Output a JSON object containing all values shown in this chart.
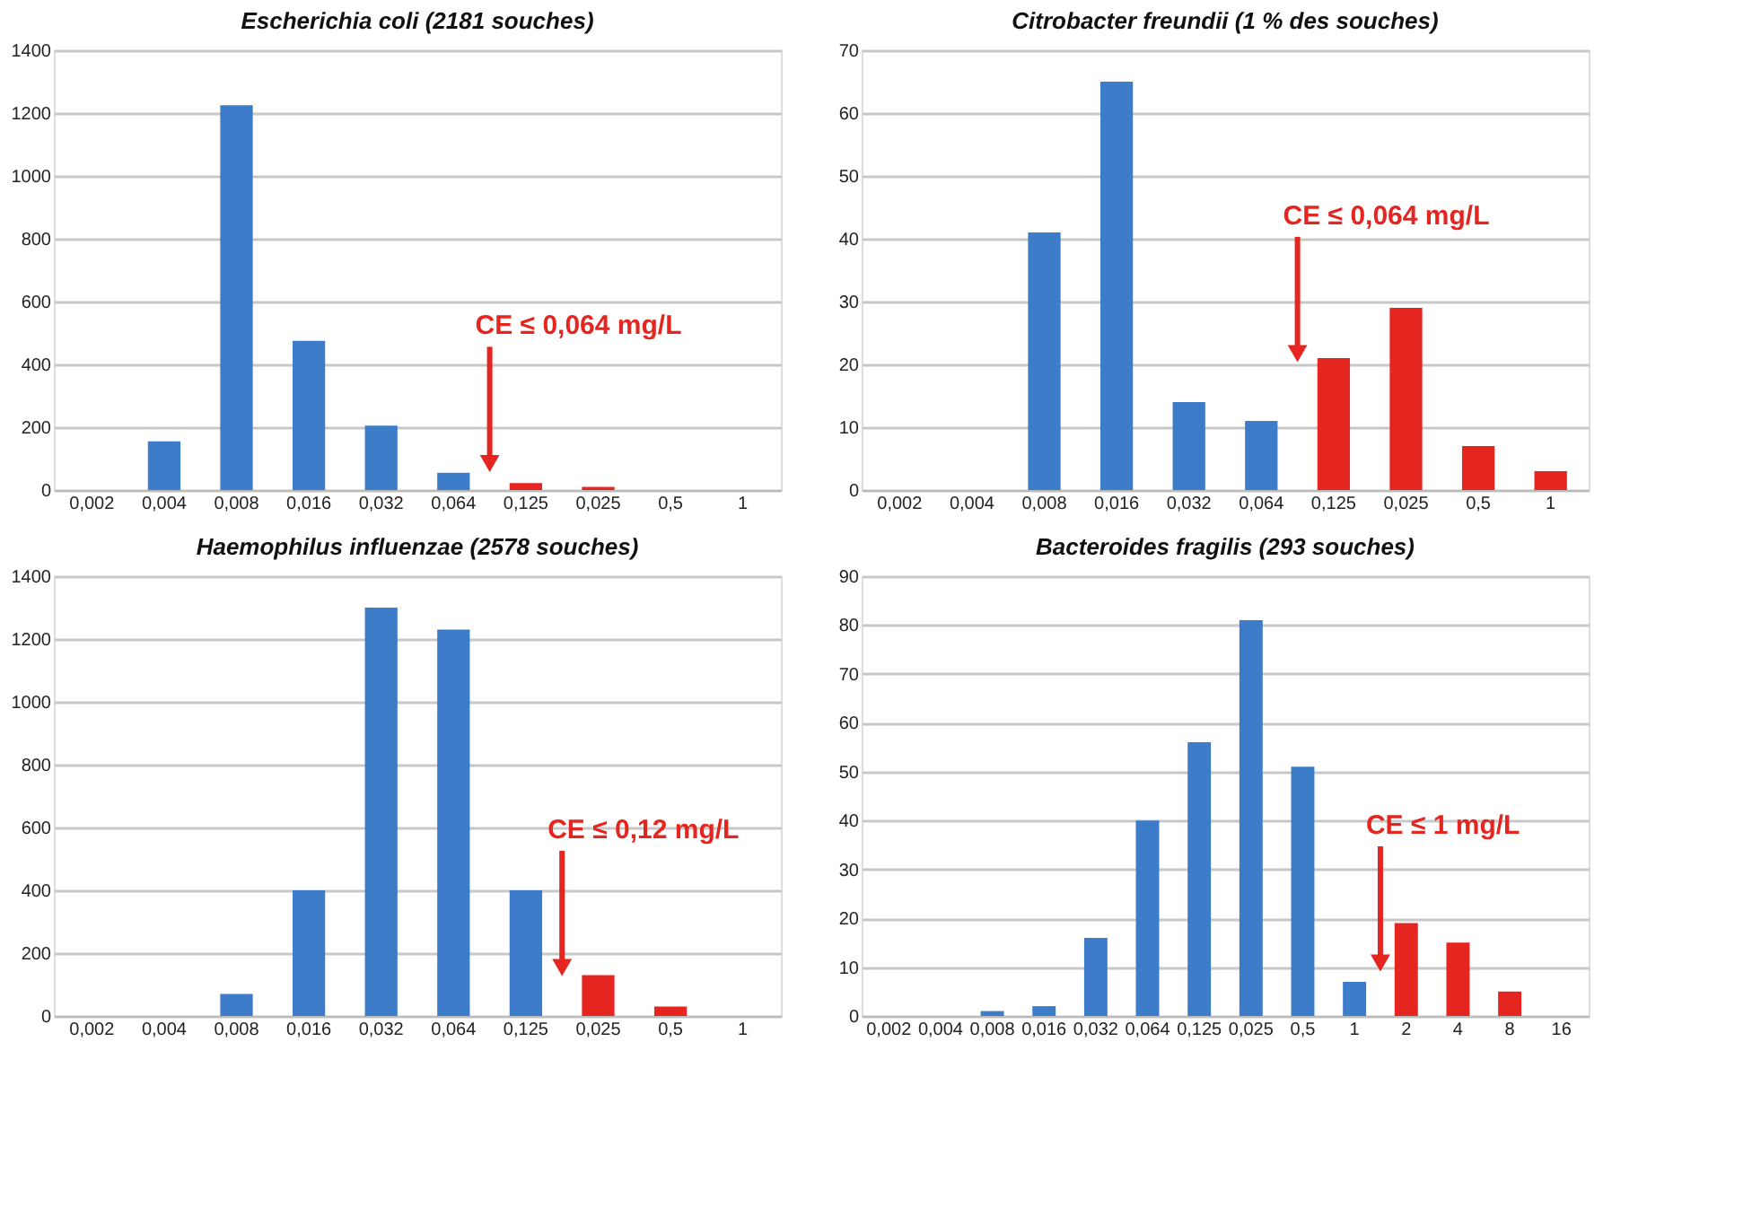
{
  "chart_data": [
    {
      "type": "bar",
      "title": "Escherichia coli (2181 souches)",
      "categories": [
        "0,002",
        "0,004",
        "0,008",
        "0,016",
        "0,032",
        "0,064",
        "0,125",
        "0,025",
        "0,5",
        "1"
      ],
      "values": [
        0,
        155,
        1225,
        475,
        205,
        55,
        22,
        10,
        0,
        0
      ],
      "colors": [
        "#3d7cc9",
        "#3d7cc9",
        "#3d7cc9",
        "#3d7cc9",
        "#3d7cc9",
        "#3d7cc9",
        "#e52520",
        "#e52520",
        "#e52520",
        "#e52520"
      ],
      "ylim": [
        0,
        1400
      ],
      "yticks": [
        0,
        200,
        400,
        600,
        800,
        1000,
        1200,
        1400
      ],
      "grid": "y",
      "annotations": [
        "CE ≤ 0,064 mg/L"
      ]
    },
    {
      "type": "bar",
      "title": "Citrobacter freundii (1 % des souches)",
      "categories": [
        "0,002",
        "0,004",
        "0,008",
        "0,016",
        "0,032",
        "0,064",
        "0,125",
        "0,025",
        "0,5",
        "1"
      ],
      "values": [
        0,
        0,
        41,
        65,
        14,
        11,
        21,
        29,
        7,
        3
      ],
      "colors": [
        "#3d7cc9",
        "#3d7cc9",
        "#3d7cc9",
        "#3d7cc9",
        "#3d7cc9",
        "#3d7cc9",
        "#e52520",
        "#e52520",
        "#e52520",
        "#e52520"
      ],
      "ylim": [
        0,
        70
      ],
      "yticks": [
        0,
        10,
        20,
        30,
        40,
        50,
        60,
        70
      ],
      "grid": "y",
      "annotations": [
        "CE ≤ 0,064 mg/L"
      ]
    },
    {
      "type": "bar",
      "title": "Haemophilus influenzae (2578 souches)",
      "categories": [
        "0,002",
        "0,004",
        "0,008",
        "0,016",
        "0,032",
        "0,064",
        "0,125",
        "0,025",
        "0,5",
        "1"
      ],
      "values": [
        0,
        0,
        70,
        400,
        1300,
        1230,
        400,
        130,
        30,
        0
      ],
      "colors": [
        "#3d7cc9",
        "#3d7cc9",
        "#3d7cc9",
        "#3d7cc9",
        "#3d7cc9",
        "#3d7cc9",
        "#3d7cc9",
        "#e52520",
        "#e52520",
        "#e52520"
      ],
      "ylim": [
        0,
        1400
      ],
      "yticks": [
        0,
        200,
        400,
        600,
        800,
        1000,
        1200,
        1400
      ],
      "grid": "y",
      "annotations": [
        "CE ≤ 0,12 mg/L"
      ]
    },
    {
      "type": "bar",
      "title": "Bacteroides fragilis (293 souches)",
      "categories": [
        "0,002",
        "0,004",
        "0,008",
        "0,016",
        "0,032",
        "0,064",
        "0,125",
        "0,025",
        "0,5",
        "1",
        "2",
        "4",
        "8",
        "16"
      ],
      "values": [
        0,
        0,
        1,
        2,
        16,
        40,
        56,
        81,
        51,
        7,
        19,
        15,
        5,
        0
      ],
      "colors": [
        "#3d7cc9",
        "#3d7cc9",
        "#3d7cc9",
        "#3d7cc9",
        "#3d7cc9",
        "#3d7cc9",
        "#3d7cc9",
        "#3d7cc9",
        "#3d7cc9",
        "#3d7cc9",
        "#e52520",
        "#e52520",
        "#e52520",
        "#e52520"
      ],
      "ylim": [
        0,
        90
      ],
      "yticks": [
        0,
        10,
        20,
        30,
        40,
        50,
        60,
        70,
        80,
        90
      ],
      "grid": "y",
      "annotations": [
        "CE ≤ 1 mg/L"
      ]
    }
  ]
}
